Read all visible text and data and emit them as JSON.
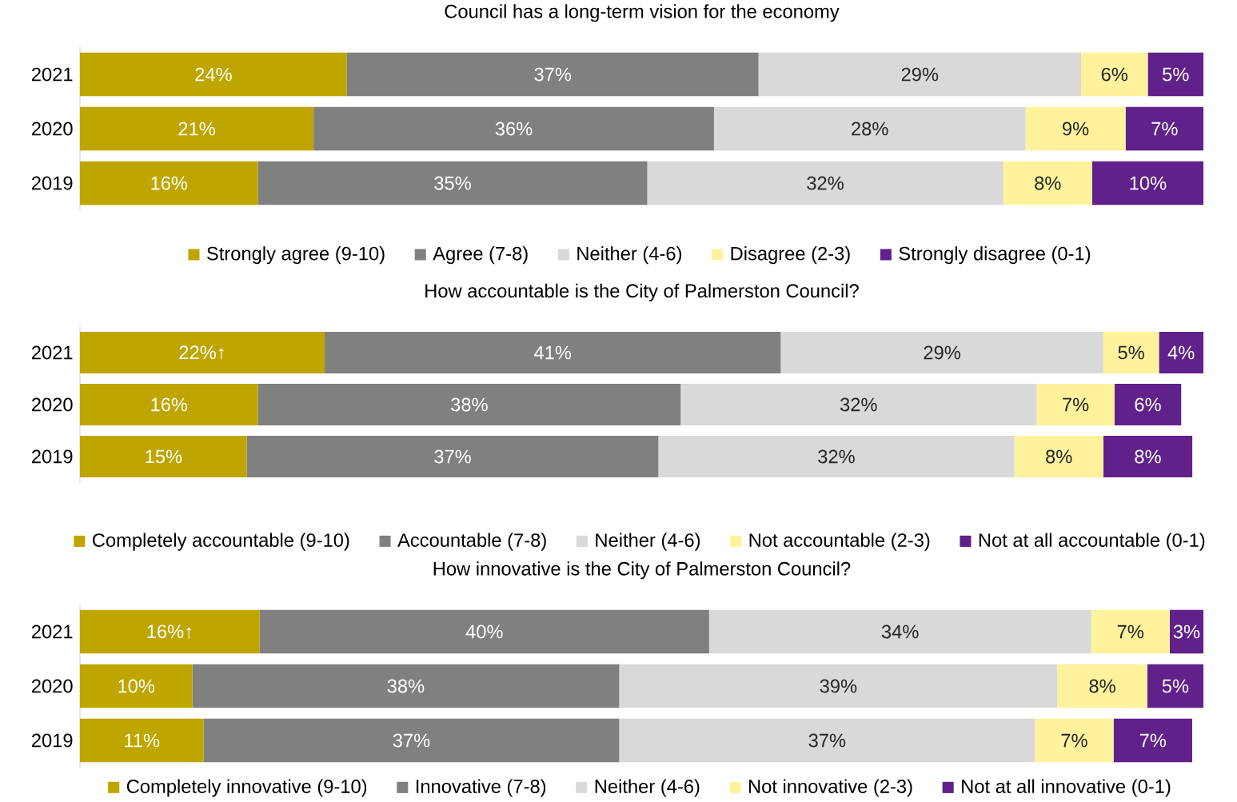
{
  "chart_data": [
    {
      "type": "bar",
      "orientation": "horizontal",
      "stacked": true,
      "legend": "bottom",
      "title": "Council has a long-term vision for the economy",
      "categories": [
        "2021",
        "2020",
        "2019"
      ],
      "series": [
        {
          "name": "Strongly agree (9-10)",
          "color": "#bfa500",
          "values": [
            24,
            21,
            16
          ],
          "value_labels": [
            "24%",
            "21%",
            "16%"
          ]
        },
        {
          "name": "Agree (7-8)",
          "color": "#808080",
          "values": [
            37,
            36,
            35
          ],
          "value_labels": [
            "37%",
            "36%",
            "35%"
          ]
        },
        {
          "name": "Neither (4-6)",
          "color": "#d9d9d9",
          "values": [
            29,
            28,
            32
          ],
          "value_labels": [
            "29%",
            "28%",
            "32%"
          ]
        },
        {
          "name": "Disagree (2-3)",
          "color": "#fff29c",
          "values": [
            6,
            9,
            8
          ],
          "value_labels": [
            "6%",
            "9%",
            "8%"
          ]
        },
        {
          "name": "Strongly disagree (0-1)",
          "color": "#60218b",
          "values": [
            5,
            7,
            10
          ],
          "value_labels": [
            "5%",
            "7%",
            "10%"
          ]
        }
      ]
    },
    {
      "type": "bar",
      "orientation": "horizontal",
      "stacked": true,
      "legend": "bottom",
      "title": "How accountable is the City of Palmerston Council?",
      "categories": [
        "2021",
        "2020",
        "2019"
      ],
      "series": [
        {
          "name": "Completely accountable (9-10)",
          "color": "#bfa500",
          "values": [
            22,
            16,
            15
          ],
          "value_labels": [
            "22%↑",
            "16%",
            "15%"
          ]
        },
        {
          "name": "Accountable (7-8)",
          "color": "#808080",
          "values": [
            41,
            38,
            37
          ],
          "value_labels": [
            "41%",
            "38%",
            "37%"
          ]
        },
        {
          "name": "Neither (4-6)",
          "color": "#d9d9d9",
          "values": [
            29,
            32,
            32
          ],
          "value_labels": [
            "29%",
            "32%",
            "32%"
          ]
        },
        {
          "name": "Not accountable (2-3)",
          "color": "#fff29c",
          "values": [
            5,
            7,
            8
          ],
          "value_labels": [
            "5%",
            "7%",
            "8%"
          ]
        },
        {
          "name": "Not at all accountable (0-1)",
          "color": "#60218b",
          "values": [
            4,
            6,
            8
          ],
          "value_labels": [
            "4%",
            "6%",
            "8%"
          ]
        }
      ]
    },
    {
      "type": "bar",
      "orientation": "horizontal",
      "stacked": true,
      "legend": "bottom",
      "title": "How innovative is the City of Palmerston Council?",
      "categories": [
        "2021",
        "2020",
        "2019"
      ],
      "series": [
        {
          "name": "Completely innovative (9-10)",
          "color": "#bfa500",
          "values": [
            16,
            10,
            11
          ],
          "value_labels": [
            "16%↑",
            "10%",
            "11%"
          ]
        },
        {
          "name": "Innovative (7-8)",
          "color": "#808080",
          "values": [
            40,
            38,
            37
          ],
          "value_labels": [
            "40%",
            "38%",
            "37%"
          ]
        },
        {
          "name": "Neither (4-6)",
          "color": "#d9d9d9",
          "values": [
            34,
            39,
            37
          ],
          "value_labels": [
            "34%",
            "39%",
            "37%"
          ]
        },
        {
          "name": "Not innovative (2-3)",
          "color": "#fff29c",
          "values": [
            7,
            8,
            7
          ],
          "value_labels": [
            "7%",
            "8%",
            "7%"
          ]
        },
        {
          "name": "Not at all innovative (0-1)",
          "color": "#60218b",
          "values": [
            3,
            5,
            7
          ],
          "value_labels": [
            "3%",
            "5%",
            "7%"
          ]
        }
      ]
    }
  ]
}
